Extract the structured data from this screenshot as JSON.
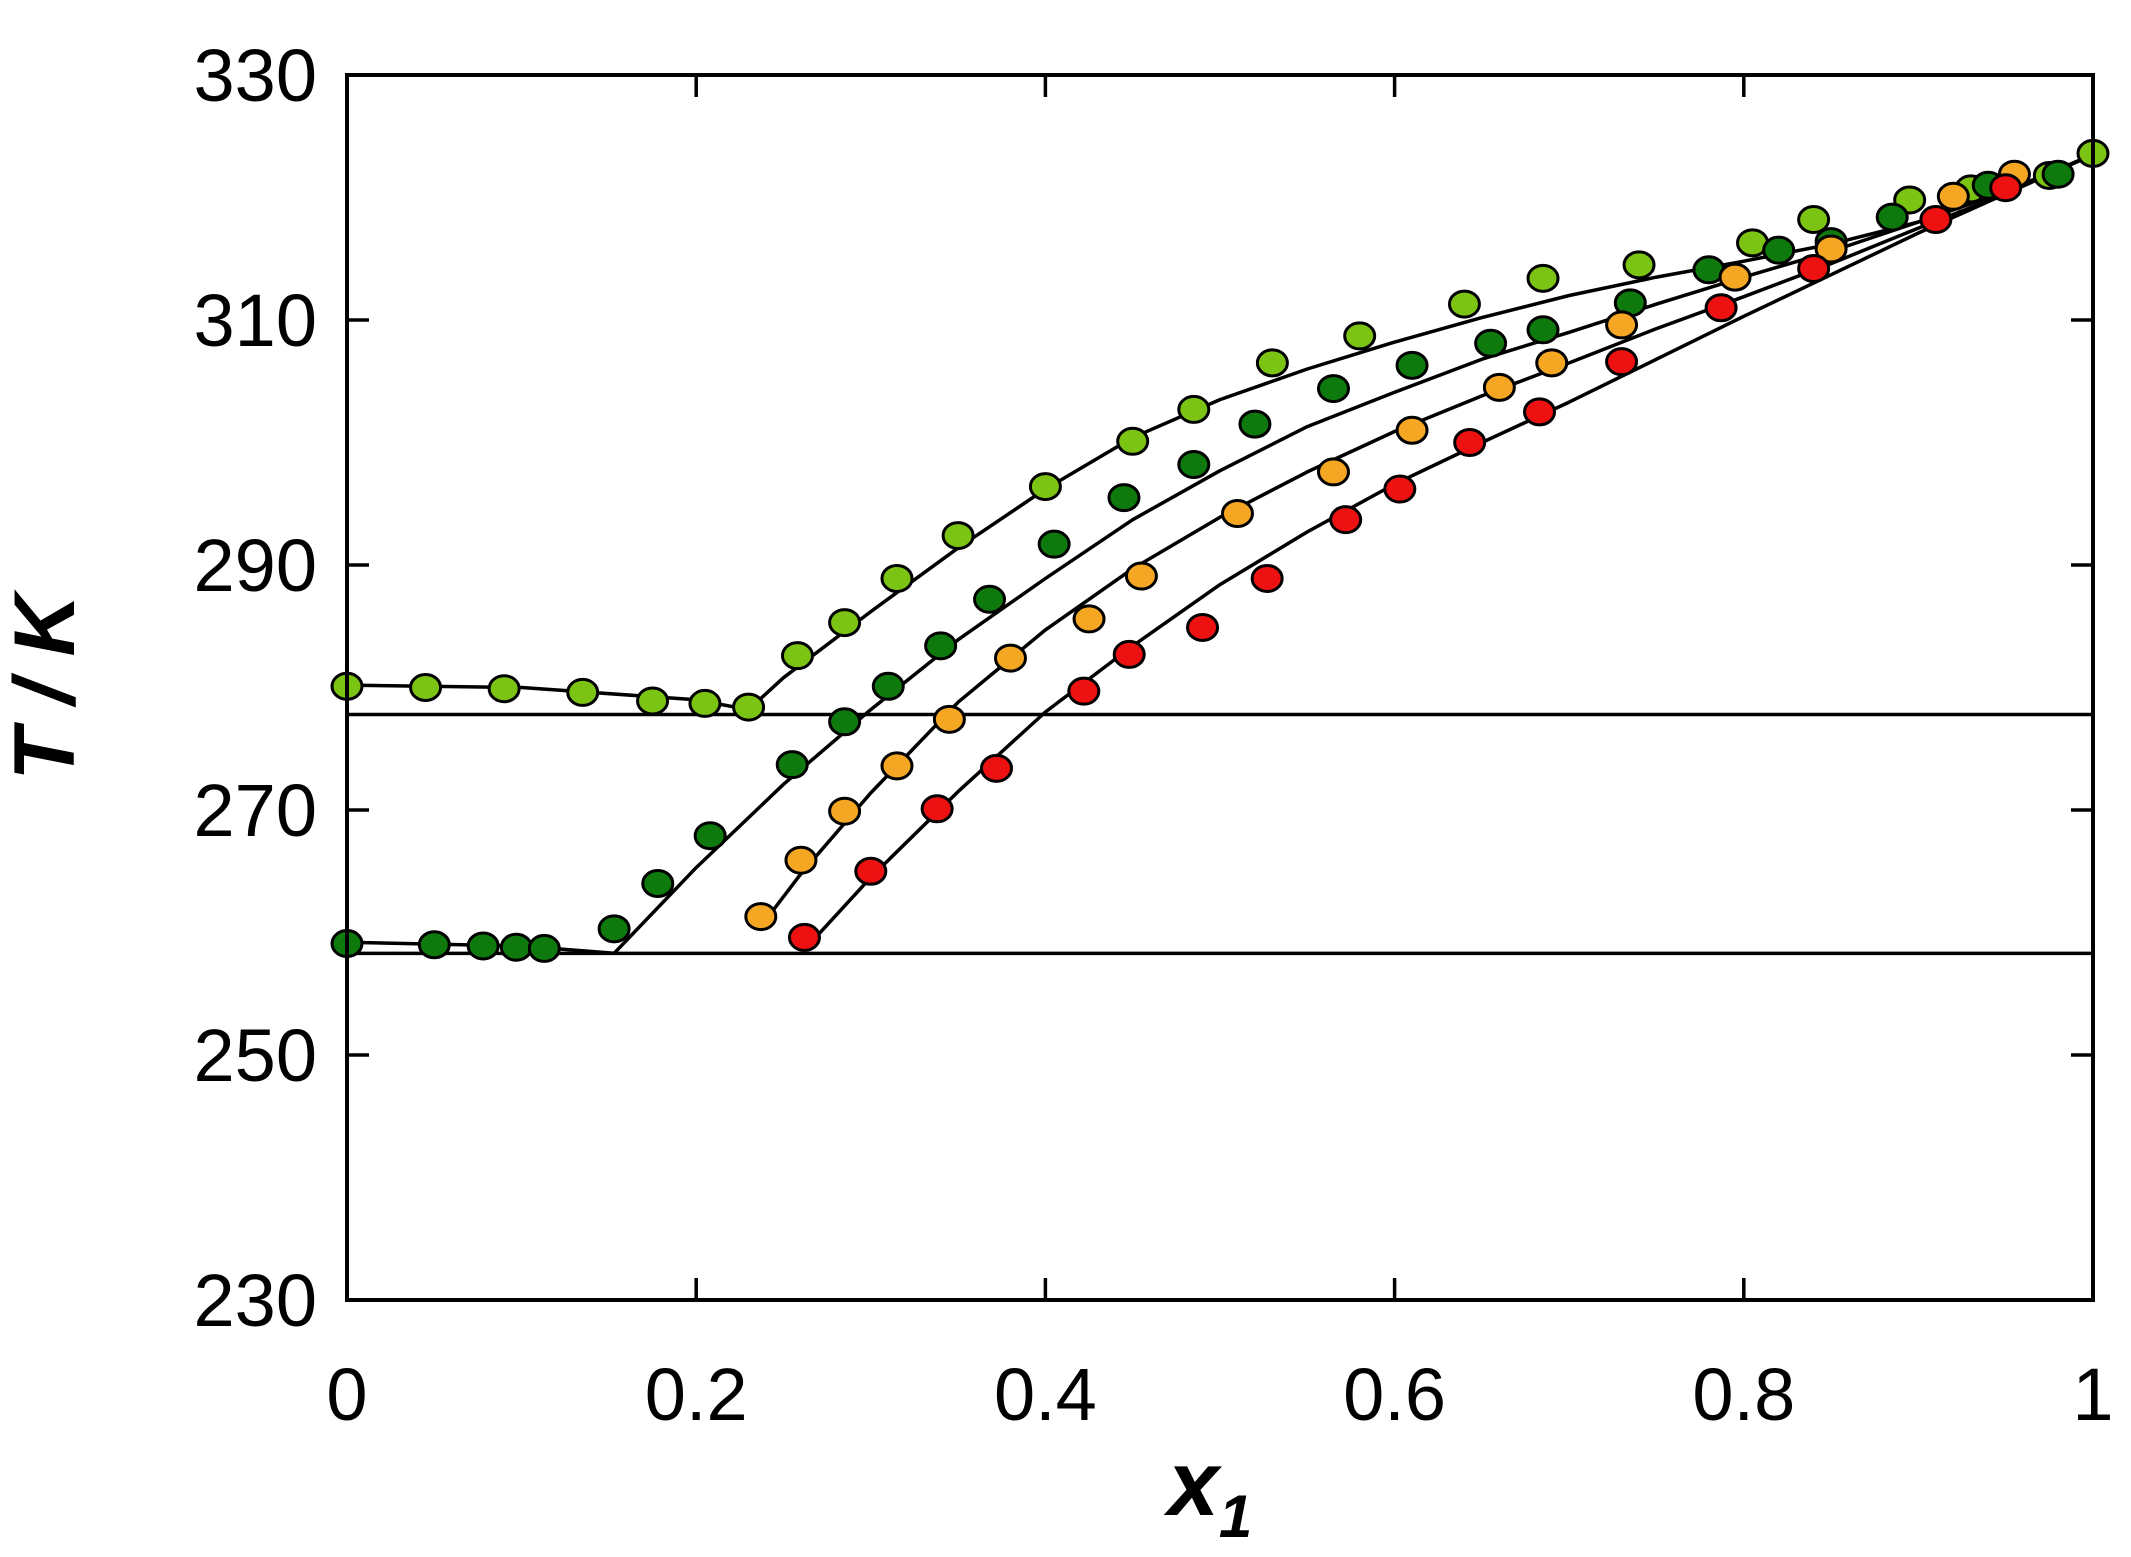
{
  "chart_data": {
    "type": "scatter",
    "xlabel": "x",
    "xlabel_sub": "1",
    "ylabel": "T / K",
    "xlim": [
      0,
      1
    ],
    "ylim": [
      230,
      330
    ],
    "xticks": [
      "0",
      "0.2",
      "0.4",
      "0.6",
      "0.8",
      "1"
    ],
    "xtick_values": [
      0,
      0.2,
      0.4,
      0.6,
      0.8,
      1
    ],
    "yticks": [
      "330",
      "310",
      "290",
      "270",
      "250",
      "230"
    ],
    "ytick_values": [
      330,
      310,
      290,
      270,
      250,
      230
    ],
    "grid": false,
    "hlines": [
      277.8,
      258.3
    ],
    "series": [
      {
        "color": "#7cc414",
        "points": [
          [
            0,
            280.1
          ],
          [
            0.045,
            280.0
          ],
          [
            0.09,
            279.9
          ],
          [
            0.135,
            279.6
          ],
          [
            0.175,
            278.9
          ],
          [
            0.205,
            278.7
          ],
          [
            0.23,
            278.4
          ],
          [
            0.258,
            282.6
          ],
          [
            0.285,
            285.3
          ],
          [
            0.315,
            288.9
          ],
          [
            0.35,
            292.4
          ],
          [
            0.4,
            296.4
          ],
          [
            0.45,
            300.1
          ],
          [
            0.485,
            302.7
          ],
          [
            0.53,
            306.5
          ],
          [
            0.58,
            308.7
          ],
          [
            0.64,
            311.3
          ],
          [
            0.685,
            313.4
          ],
          [
            0.74,
            314.5
          ],
          [
            0.805,
            316.3
          ],
          [
            0.84,
            318.2
          ],
          [
            0.895,
            319.8
          ],
          [
            0.93,
            320.7
          ],
          [
            0.975,
            321.8
          ],
          [
            1,
            323.6
          ]
        ]
      },
      {
        "color": "#0e7a0e",
        "points": [
          [
            0,
            259.1
          ],
          [
            0.05,
            259.0
          ],
          [
            0.078,
            258.9
          ],
          [
            0.097,
            258.8
          ],
          [
            0.113,
            258.7
          ],
          [
            0.153,
            260.3
          ],
          [
            0.178,
            264.0
          ],
          [
            0.208,
            267.9
          ],
          [
            0.255,
            273.7
          ],
          [
            0.285,
            277.2
          ],
          [
            0.31,
            280.1
          ],
          [
            0.34,
            283.4
          ],
          [
            0.368,
            287.2
          ],
          [
            0.405,
            291.7
          ],
          [
            0.445,
            295.5
          ],
          [
            0.485,
            298.2
          ],
          [
            0.52,
            301.5
          ],
          [
            0.565,
            304.4
          ],
          [
            0.61,
            306.3
          ],
          [
            0.655,
            308.1
          ],
          [
            0.685,
            309.2
          ],
          [
            0.735,
            311.4
          ],
          [
            0.78,
            314.1
          ],
          [
            0.82,
            315.7
          ],
          [
            0.85,
            316.4
          ],
          [
            0.885,
            318.4
          ],
          [
            0.94,
            321.0
          ],
          [
            0.98,
            321.9
          ]
        ]
      },
      {
        "color": "#f5a623",
        "points": [
          [
            0.237,
            261.3
          ],
          [
            0.26,
            265.9
          ],
          [
            0.285,
            269.9
          ],
          [
            0.315,
            273.6
          ],
          [
            0.345,
            277.4
          ],
          [
            0.38,
            282.4
          ],
          [
            0.425,
            285.6
          ],
          [
            0.455,
            289.1
          ],
          [
            0.51,
            294.2
          ],
          [
            0.565,
            297.6
          ],
          [
            0.61,
            301.0
          ],
          [
            0.66,
            304.5
          ],
          [
            0.69,
            306.5
          ],
          [
            0.73,
            309.6
          ],
          [
            0.795,
            313.5
          ],
          [
            0.85,
            315.8
          ],
          [
            0.92,
            320.1
          ],
          [
            0.955,
            321.9
          ]
        ]
      },
      {
        "color": "#ee1111",
        "points": [
          [
            0.262,
            259.6
          ],
          [
            0.3,
            265.0
          ],
          [
            0.338,
            270.1
          ],
          [
            0.372,
            273.4
          ],
          [
            0.422,
            279.7
          ],
          [
            0.448,
            282.7
          ],
          [
            0.49,
            284.9
          ],
          [
            0.527,
            288.9
          ],
          [
            0.572,
            293.7
          ],
          [
            0.603,
            296.2
          ],
          [
            0.643,
            300.0
          ],
          [
            0.683,
            302.5
          ],
          [
            0.73,
            306.6
          ],
          [
            0.787,
            311.0
          ],
          [
            0.84,
            314.2
          ],
          [
            0.91,
            318.2
          ],
          [
            0.95,
            320.8
          ]
        ]
      }
    ],
    "curves": [
      {
        "points": [
          [
            0,
            280.2
          ],
          [
            0.1,
            280.0
          ],
          [
            0.2,
            279.0
          ],
          [
            0.23,
            278.2
          ],
          [
            0.25,
            280.8
          ],
          [
            0.3,
            286.2
          ],
          [
            0.35,
            291.4
          ],
          [
            0.4,
            296.2
          ],
          [
            0.45,
            300.4
          ],
          [
            0.5,
            303.5
          ],
          [
            0.55,
            306.0
          ],
          [
            0.6,
            308.2
          ],
          [
            0.65,
            310.2
          ],
          [
            0.7,
            312.0
          ],
          [
            0.75,
            313.5
          ],
          [
            0.8,
            314.8
          ],
          [
            0.85,
            316.2
          ],
          [
            0.9,
            318.0
          ],
          [
            0.95,
            320.5
          ],
          [
            1,
            323.5
          ]
        ]
      },
      {
        "points": [
          [
            0,
            259.2
          ],
          [
            0.1,
            258.9
          ],
          [
            0.153,
            258.3
          ],
          [
            0.2,
            265.3
          ],
          [
            0.25,
            272.1
          ],
          [
            0.3,
            278.2
          ],
          [
            0.35,
            283.9
          ],
          [
            0.4,
            288.9
          ],
          [
            0.45,
            293.7
          ],
          [
            0.5,
            297.7
          ],
          [
            0.55,
            301.3
          ],
          [
            0.6,
            304.1
          ],
          [
            0.65,
            306.8
          ],
          [
            0.7,
            309.0
          ],
          [
            0.75,
            311.3
          ],
          [
            0.8,
            313.5
          ],
          [
            0.85,
            315.6
          ],
          [
            0.9,
            318.0
          ],
          [
            0.95,
            320.5
          ],
          [
            1,
            323.5
          ]
        ]
      },
      {
        "points": [
          [
            0.237,
            260.5
          ],
          [
            0.26,
            264.8
          ],
          [
            0.3,
            271.4
          ],
          [
            0.35,
            278.8
          ],
          [
            0.4,
            284.7
          ],
          [
            0.45,
            289.7
          ],
          [
            0.5,
            293.9
          ],
          [
            0.55,
            297.6
          ],
          [
            0.6,
            300.9
          ],
          [
            0.65,
            303.8
          ],
          [
            0.7,
            306.5
          ],
          [
            0.75,
            309.3
          ],
          [
            0.8,
            311.9
          ],
          [
            0.85,
            314.6
          ],
          [
            0.9,
            317.5
          ],
          [
            0.95,
            320.3
          ],
          [
            1,
            323.5
          ]
        ]
      },
      {
        "points": [
          [
            0.262,
            258.6
          ],
          [
            0.3,
            264.5
          ],
          [
            0.35,
            271.5
          ],
          [
            0.4,
            278.0
          ],
          [
            0.45,
            283.4
          ],
          [
            0.5,
            288.4
          ],
          [
            0.55,
            292.7
          ],
          [
            0.6,
            296.6
          ],
          [
            0.65,
            300.0
          ],
          [
            0.7,
            303.3
          ],
          [
            0.75,
            306.8
          ],
          [
            0.8,
            310.3
          ],
          [
            0.85,
            313.7
          ],
          [
            0.9,
            317.1
          ],
          [
            0.95,
            320.3
          ],
          [
            1,
            323.5
          ]
        ]
      }
    ]
  }
}
